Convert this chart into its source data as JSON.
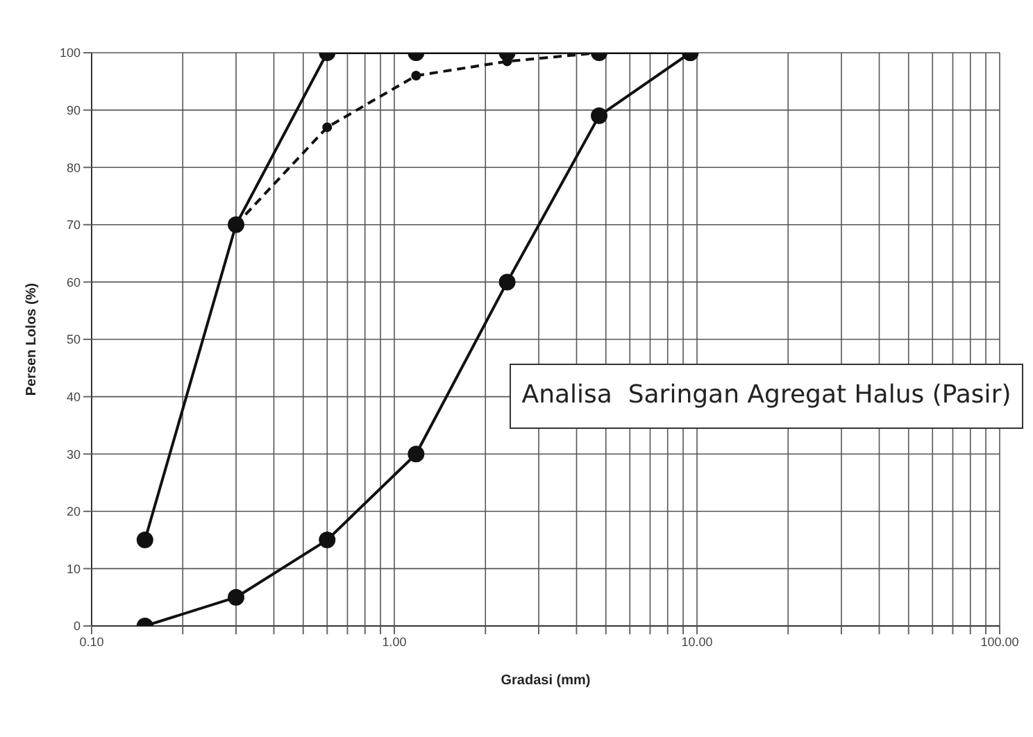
{
  "chart_data": {
    "type": "line",
    "xlabel": "Gradasi (mm)",
    "ylabel": "Persen Lolos (%)",
    "annotations": [
      "Analisa  Saringan Agregat Halus (Pasir)"
    ],
    "log": "x",
    "grid": true,
    "marker": "circle",
    "xlim": [
      0.1,
      100
    ],
    "ylim": [
      0,
      100
    ],
    "xticks": [
      {
        "value": 0.1,
        "label": "0.10"
      },
      {
        "value": 0.2,
        "label": null
      },
      {
        "value": 0.3,
        "label": null
      },
      {
        "value": 0.4,
        "label": null
      },
      {
        "value": 0.5,
        "label": null
      },
      {
        "value": 0.6,
        "label": null
      },
      {
        "value": 0.7,
        "label": null
      },
      {
        "value": 0.8,
        "label": null
      },
      {
        "value": 0.9,
        "label": null
      },
      {
        "value": 1,
        "label": "1.00"
      },
      {
        "value": 2,
        "label": null
      },
      {
        "value": 3,
        "label": null
      },
      {
        "value": 4,
        "label": null
      },
      {
        "value": 5,
        "label": null
      },
      {
        "value": 6,
        "label": null
      },
      {
        "value": 7,
        "label": null
      },
      {
        "value": 8,
        "label": null
      },
      {
        "value": 9,
        "label": null
      },
      {
        "value": 10,
        "label": "10.00"
      },
      {
        "value": 20,
        "label": null
      },
      {
        "value": 30,
        "label": null
      },
      {
        "value": 40,
        "label": null
      },
      {
        "value": 50,
        "label": null
      },
      {
        "value": 60,
        "label": null
      },
      {
        "value": 70,
        "label": null
      },
      {
        "value": 80,
        "label": null
      },
      {
        "value": 90,
        "label": null
      },
      {
        "value": 100,
        "label": "100.00"
      }
    ],
    "yticks": [
      0,
      10,
      20,
      30,
      40,
      50,
      60,
      70,
      80,
      90,
      100
    ],
    "series": [
      {
        "color": "#111111",
        "line_style": "solid",
        "x": [
          0.15,
          0.3,
          0.6,
          1.18,
          2.36,
          4.75,
          9.5
        ],
        "values": [
          15,
          70,
          100,
          100,
          100,
          100,
          100
        ]
      },
      {
        "color": "#111111",
        "line_style": "solid",
        "x": [
          0.15,
          0.3,
          0.6,
          1.18,
          2.36,
          4.75,
          9.5
        ],
        "values": [
          0,
          5,
          15,
          30,
          60,
          89,
          100
        ]
      },
      {
        "color": "#111111",
        "line_style": "dashed",
        "x": [
          0.3,
          0.6,
          1.18,
          2.36,
          4.75,
          9.5
        ],
        "values": [
          70,
          87,
          96,
          98.5,
          100,
          100
        ]
      }
    ]
  }
}
